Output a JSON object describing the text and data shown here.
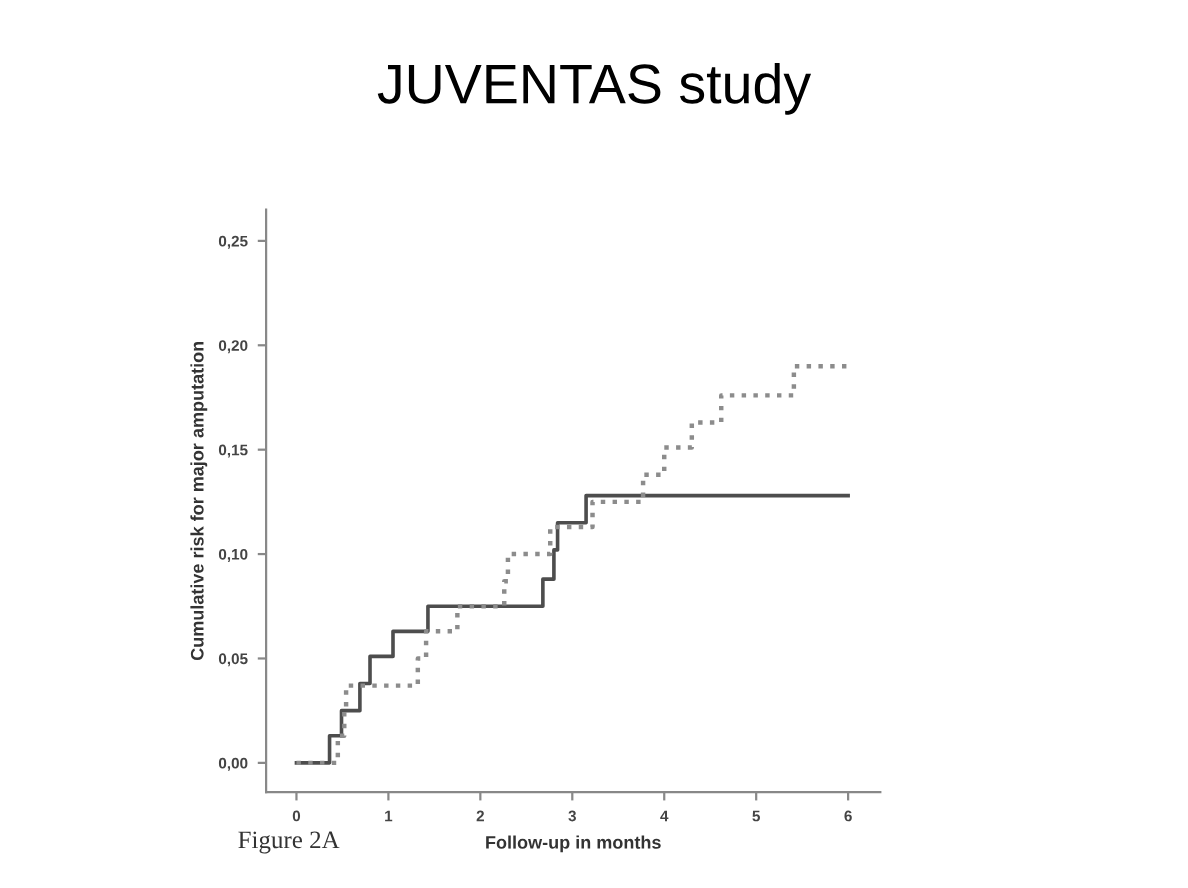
{
  "chart_data": {
    "type": "step",
    "title": "JUVENTAS study",
    "xlabel": "Follow-up in months",
    "ylabel": "Cumulative risk for major amputation",
    "annotations": [
      "Figure 2A"
    ],
    "series": [
      {
        "color": "#4d4d4d",
        "line_style": "solid",
        "x": [
          0,
          0.36,
          0.49,
          0.69,
          0.8,
          1.05,
          1.43,
          2.68,
          2.8,
          2.84,
          3.15,
          6
        ],
        "values": [
          0,
          0.013,
          0.025,
          0.038,
          0.051,
          0.063,
          0.075,
          0.088,
          0.102,
          0.115,
          0.128,
          0.128
        ]
      },
      {
        "color": "#8c8c8c",
        "line_style": "dotted",
        "x": [
          0,
          0.45,
          0.52,
          0.54,
          1.32,
          1.41,
          1.75,
          2.26,
          2.3,
          2.76,
          3.22,
          3.77,
          4.0,
          4.3,
          4.62,
          5.41,
          6
        ],
        "values": [
          0,
          0.013,
          0.025,
          0.037,
          0.05,
          0.063,
          0.075,
          0.087,
          0.1,
          0.113,
          0.125,
          0.138,
          0.151,
          0.163,
          0.176,
          0.19,
          0.19
        ]
      }
    ],
    "xlim": [
      -0.33,
      6.35
    ],
    "ylim": [
      -0.014,
      0.265
    ],
    "xticks": [
      0,
      1,
      2,
      3,
      4,
      5,
      6
    ],
    "yticks": [
      {
        "value": 0,
        "label": "0,00"
      },
      {
        "value": 0.05,
        "label": "0,05"
      },
      {
        "value": 0.1,
        "label": "0,10"
      },
      {
        "value": 0.15,
        "label": "0,15"
      },
      {
        "value": 0.2,
        "label": "0,20"
      },
      {
        "value": 0.25,
        "label": "0,25"
      }
    ],
    "grid": false,
    "legend": false,
    "marker": "none"
  }
}
